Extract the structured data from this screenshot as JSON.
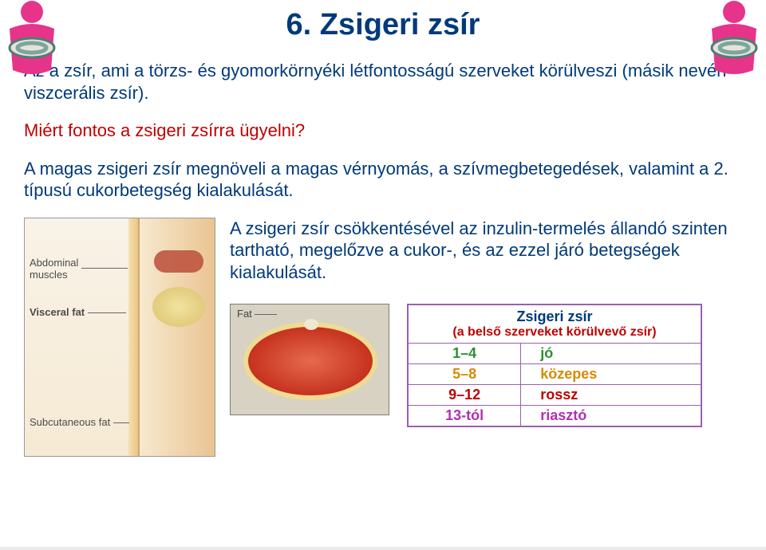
{
  "title": "6. Zsigeri zsír",
  "intro": "Az a zsír, ami a törzs- és gyomorkörnyéki létfontosságú szerveket körülveszi (másik nevén viszcerális zsír).",
  "why_heading": "Miért fontos a zsigeri zsírra ügyelni?",
  "risk_para": "A magas zsigeri zsír megnöveli a magas vérnyomás, a szívmegbetegedések, valamint a 2. típusú cukorbetegség kialakulását.",
  "reduce_para": "A zsigeri zsír csökkentésével az inzulin-termelés állandó szinten tartható, megelőzve a cukor-, és az ezzel járó betegségek kialakulását.",
  "anatomy_labels": {
    "abdominal": "Abdominal\nmuscles",
    "visceral": "Visceral fat",
    "subcut": "Subcutaneous fat"
  },
  "fat_illustration_label": "Fat",
  "rating_table": {
    "title": "Zsigeri zsír",
    "subtitle": "(a belső szerveket körülvevő zsír)",
    "rows": [
      {
        "range": "1–4",
        "label": "jó",
        "color": "#2e8f2e"
      },
      {
        "range": "5–8",
        "label": "közepes",
        "color": "#d98a00"
      },
      {
        "range": "9–12",
        "label": "rossz",
        "color": "#c00000"
      },
      {
        "range": "13-tól",
        "label": "riasztó",
        "color": "#b030b0"
      }
    ]
  },
  "colors": {
    "title_color": "#003a7a",
    "body_text_color": "#003a7a",
    "accent_red": "#c00000",
    "table_border": "#9b5fb0",
    "icon_pink": "#e6348b",
    "icon_measure": "#7aa6a0"
  },
  "icon": {
    "description": "stylized pink human torso with measurement band",
    "pink": "#e6348b",
    "band": "#89b3ad",
    "band_outline": "#4e7d77"
  }
}
